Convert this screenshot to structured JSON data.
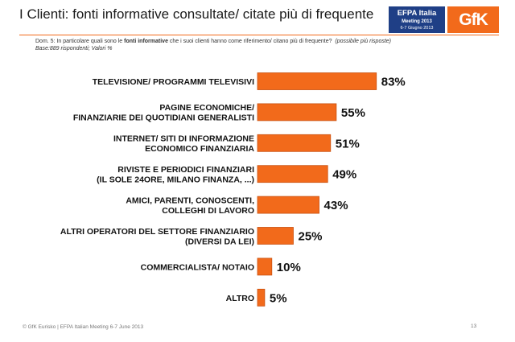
{
  "header": {
    "title": "I Clienti: fonti informative consultate/ citate più di frequente",
    "efpa_line1": "EFPA Italia",
    "efpa_line2": "Meeting 2013",
    "efpa_line3": "6-7 Giugno 2013",
    "brand": "GfK"
  },
  "question": {
    "prefix": "Dom. 5: In particolare quali sono le ",
    "bold": "fonti informative",
    "suffix": " che i suoi clienti hanno come riferimento/ citano più di frequente?",
    "note": "(possibile più risposte)",
    "base": "Base:889 rispondenti; Valori %"
  },
  "footer": {
    "copyright": "© GfK Eurisko | EFPA Italian Meeting 6-7 June 2013",
    "page": "13"
  },
  "colors": {
    "accent": "#f26a1b",
    "bar": "#f26a1b",
    "bar_edge": "#c9500f",
    "efpa": "#1f3f86"
  },
  "chart_data": {
    "type": "bar",
    "orientation": "horizontal",
    "title": "I Clienti: fonti informative consultate/ citate più di frequente",
    "xlabel": "",
    "ylabel": "",
    "xlim": [
      0,
      100
    ],
    "categories": [
      [
        "TELEVISIONE/ PROGRAMMI TELEVISIVI"
      ],
      [
        "PAGINE ECONOMICHE/",
        "FINANZIARIE DEI QUOTIDIANI GENERALISTI"
      ],
      [
        "INTERNET/ SITI DI INFORMAZIONE",
        "ECONOMICO FINANZIARIA"
      ],
      [
        "RIVISTE E PERIODICI FINANZIARI",
        "(IL SOLE 24ORE, MILANO FINANZA, ...)"
      ],
      [
        "AMICI, PARENTI, CONOSCENTI,",
        "COLLEGHI DI LAVORO"
      ],
      [
        "ALTRI OPERATORI DEL SETTORE FINANZIARIO",
        "(DIVERSI DA LEI)"
      ],
      [
        "COMMERCIALISTA/ NOTAIO"
      ],
      [
        "ALTRO"
      ]
    ],
    "values": [
      83,
      55,
      51,
      49,
      43,
      25,
      10,
      5
    ],
    "value_labels": [
      "83%",
      "55%",
      "51%",
      "49%",
      "43%",
      "25%",
      "10%",
      "5%"
    ]
  }
}
